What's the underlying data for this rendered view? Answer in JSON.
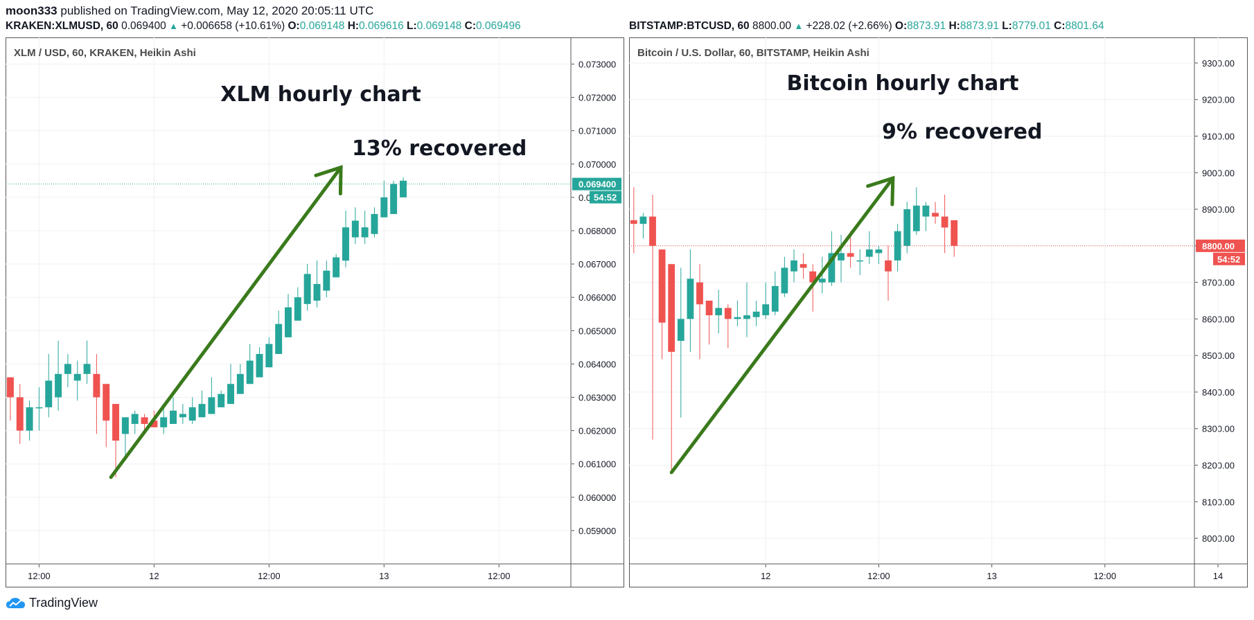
{
  "published": {
    "author": "moon333",
    "text": "published on TradingView.com, May 12, 2020 20:05:11 UTC"
  },
  "footer": {
    "brand": "TradingView"
  },
  "colors": {
    "up": "#26a69a",
    "down": "#ef5350",
    "arrow": "#3a7a1c",
    "grid": "#eef0f3",
    "axis": "#131722"
  },
  "chart_data": [
    {
      "type": "candlestick",
      "header": {
        "symbol": "KRAKEN:XLMUSD, 60",
        "last": "0.069400",
        "change": "+0.006658 (+10.61%)",
        "o_label": "O:",
        "o": "0.069148",
        "h_label": "H:",
        "h": "0.069616",
        "l_label": "L:",
        "l": "0.069148",
        "c_label": "C:",
        "c": "0.069496"
      },
      "legend": "XLM / USD, 60, KRAKEN, Heikin Ashi",
      "annotation_title": "XLM hourly chart",
      "annotation_note": "13% recovered",
      "price_label": "0.069400",
      "countdown": "54:52",
      "ylim": [
        0.058,
        0.0738
      ],
      "y_ticks": [
        "0.059000",
        "0.060000",
        "0.061000",
        "0.062000",
        "0.063000",
        "0.064000",
        "0.065000",
        "0.066000",
        "0.067000",
        "0.068000",
        "0.069000",
        "0.070000",
        "0.071000",
        "0.072000",
        "0.073000"
      ],
      "x_ticks": [
        {
          "label": "12:00",
          "bar": 3.5
        },
        {
          "label": "12",
          "bar": 15.5
        },
        {
          "label": "12:00",
          "bar": 27.5
        },
        {
          "label": "13",
          "bar": 39.5
        },
        {
          "label": "12:00",
          "bar": 51.5
        }
      ],
      "x_total_bars": 59,
      "current_price": 0.0694,
      "arrow": {
        "from": [
          10.5,
          0.0606
        ],
        "to": [
          34.5,
          0.0699
        ]
      },
      "ohlc": [
        [
          0.0636,
          0.0636,
          0.0623,
          0.063
        ],
        [
          0.063,
          0.0634,
          0.0616,
          0.062
        ],
        [
          0.062,
          0.0629,
          0.0617,
          0.0627
        ],
        [
          0.0627,
          0.0633,
          0.062,
          0.0627
        ],
        [
          0.0627,
          0.0643,
          0.0624,
          0.0635
        ],
        [
          0.063,
          0.0647,
          0.0626,
          0.0637
        ],
        [
          0.0637,
          0.0643,
          0.0633,
          0.064
        ],
        [
          0.0635,
          0.0641,
          0.0629,
          0.0637
        ],
        [
          0.0637,
          0.0647,
          0.0634,
          0.064
        ],
        [
          0.0637,
          0.0643,
          0.0619,
          0.063
        ],
        [
          0.0634,
          0.0634,
          0.0615,
          0.0623
        ],
        [
          0.0628,
          0.0628,
          0.0606,
          0.0617
        ],
        [
          0.0619,
          0.0624,
          0.0611,
          0.0624
        ],
        [
          0.0622,
          0.0626,
          0.0619,
          0.0625
        ],
        [
          0.0624,
          0.0625,
          0.062,
          0.0622
        ],
        [
          0.0623,
          0.0626,
          0.0621,
          0.0621
        ],
        [
          0.0621,
          0.0628,
          0.0619,
          0.0624
        ],
        [
          0.0622,
          0.063,
          0.0622,
          0.0626
        ],
        [
          0.0624,
          0.0628,
          0.0622,
          0.0625
        ],
        [
          0.0623,
          0.063,
          0.0622,
          0.0627
        ],
        [
          0.0624,
          0.0632,
          0.0624,
          0.0628
        ],
        [
          0.0625,
          0.0636,
          0.0625,
          0.063
        ],
        [
          0.0627,
          0.0632,
          0.0627,
          0.0631
        ],
        [
          0.0628,
          0.064,
          0.0628,
          0.0634
        ],
        [
          0.0631,
          0.064,
          0.0631,
          0.0637
        ],
        [
          0.0634,
          0.0646,
          0.0634,
          0.0641
        ],
        [
          0.0636,
          0.0645,
          0.0636,
          0.0643
        ],
        [
          0.0639,
          0.0648,
          0.0639,
          0.0646
        ],
        [
          0.0643,
          0.0656,
          0.0643,
          0.0652
        ],
        [
          0.0648,
          0.0661,
          0.0648,
          0.0657
        ],
        [
          0.0653,
          0.0663,
          0.0653,
          0.066
        ],
        [
          0.0658,
          0.067,
          0.0656,
          0.0667
        ],
        [
          0.0659,
          0.0671,
          0.0657,
          0.0664
        ],
        [
          0.0662,
          0.0671,
          0.066,
          0.0668
        ],
        [
          0.0666,
          0.0673,
          0.0666,
          0.0672
        ],
        [
          0.0671,
          0.0686,
          0.0669,
          0.0681
        ],
        [
          0.0678,
          0.0687,
          0.0676,
          0.0683
        ],
        [
          0.0678,
          0.0686,
          0.0676,
          0.0681
        ],
        [
          0.0679,
          0.0687,
          0.0678,
          0.0685
        ],
        [
          0.0684,
          0.0695,
          0.0684,
          0.069
        ],
        [
          0.0685,
          0.0695,
          0.0685,
          0.0694
        ],
        [
          0.069,
          0.0696,
          0.069,
          0.0695
        ]
      ]
    },
    {
      "type": "candlestick",
      "header": {
        "symbol": "BITSTAMP:BTCUSD, 60",
        "last": "8800.00",
        "change": "+228.02 (+2.66%)",
        "o_label": "O:",
        "o": "8873.91",
        "h_label": "H:",
        "h": "8873.91",
        "l_label": "L:",
        "l": "8779.01",
        "c_label": "C:",
        "c": "8801.64"
      },
      "legend": "Bitcoin / U.S. Dollar, 60, BITSTAMP, Heikin Ashi",
      "annotation_title": "Bitcoin hourly chart",
      "annotation_note": "9% recovered",
      "price_label": "8800.00",
      "countdown": "54:52",
      "ylim": [
        7930,
        9370
      ],
      "y_ticks": [
        "8000.00",
        "8100.00",
        "8200.00",
        "8300.00",
        "8400.00",
        "8500.00",
        "8600.00",
        "8700.00",
        "8800.00",
        "8900.00",
        "9000.00",
        "9100.00",
        "9200.00",
        "9300.00"
      ],
      "x_ticks": [
        {
          "label": "12",
          "bar": 14.5
        },
        {
          "label": "12:00",
          "bar": 26.5
        },
        {
          "label": "13",
          "bar": 38.5
        },
        {
          "label": "12:00",
          "bar": 50.5
        },
        {
          "label": "14",
          "bar": 62.5
        }
      ],
      "x_total_bars": 60,
      "current_price": 8800,
      "arrow": {
        "from": [
          4.0,
          8180
        ],
        "to": [
          27.5,
          8985
        ]
      },
      "ohlc": [
        [
          8870,
          8960,
          8780,
          8860
        ],
        [
          8860,
          8890,
          8820,
          8880
        ],
        [
          8880,
          8940,
          8270,
          8800
        ],
        [
          8790,
          8790,
          8490,
          8590
        ],
        [
          8750,
          8750,
          8180,
          8510
        ],
        [
          8540,
          8740,
          8330,
          8600
        ],
        [
          8600,
          8790,
          8510,
          8710
        ],
        [
          8700,
          8750,
          8490,
          8640
        ],
        [
          8650,
          8650,
          8530,
          8610
        ],
        [
          8610,
          8680,
          8560,
          8630
        ],
        [
          8630,
          8640,
          8520,
          8600
        ],
        [
          8600,
          8650,
          8580,
          8605
        ],
        [
          8600,
          8700,
          8550,
          8610
        ],
        [
          8605,
          8650,
          8580,
          8620
        ],
        [
          8610,
          8700,
          8600,
          8640
        ],
        [
          8620,
          8730,
          8610,
          8690
        ],
        [
          8670,
          8770,
          8660,
          8740
        ],
        [
          8730,
          8790,
          8700,
          8760
        ],
        [
          8750,
          8780,
          8710,
          8740
        ],
        [
          8730,
          8750,
          8620,
          8700
        ],
        [
          8700,
          8770,
          8670,
          8710
        ],
        [
          8700,
          8840,
          8690,
          8780
        ],
        [
          8760,
          8830,
          8700,
          8780
        ],
        [
          8780,
          8840,
          8740,
          8770
        ],
        [
          8760,
          8790,
          8720,
          8760
        ],
        [
          8770,
          8840,
          8750,
          8790
        ],
        [
          8780,
          8800,
          8750,
          8790
        ],
        [
          8760,
          8800,
          8650,
          8730
        ],
        [
          8760,
          8860,
          8730,
          8840
        ],
        [
          8800,
          8920,
          8780,
          8900
        ],
        [
          8840,
          8960,
          8830,
          8910
        ],
        [
          8880,
          8920,
          8840,
          8910
        ],
        [
          8890,
          8920,
          8860,
          8880
        ],
        [
          8880,
          8940,
          8780,
          8850
        ],
        [
          8870,
          8870,
          8770,
          8800
        ]
      ]
    }
  ]
}
